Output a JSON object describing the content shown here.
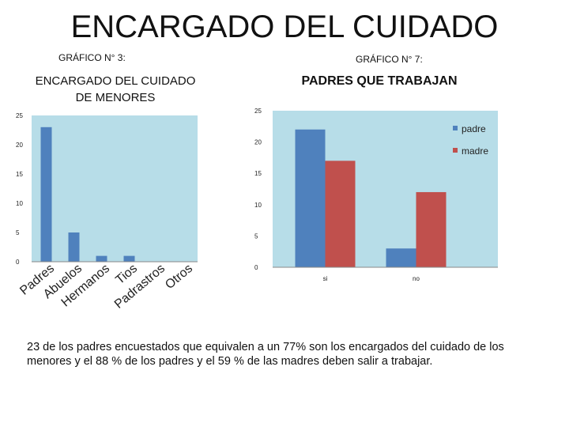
{
  "slide": {
    "title": "ENCARGADO DEL CUIDADO",
    "label_chart3": "GRÁFICO N° 3:",
    "label_chart7": "GRÁFICO N° 7:",
    "caption": "23 de los padres encuestados que equivalen a un 77% son los encargados del cuidado de los menores y el 88 % de los padres y el 59 % de las madres deben salir a trabajar."
  },
  "chart_data": [
    {
      "type": "bar",
      "title": "ENCARGADO DEL CUIDADO DE MENORES",
      "categories": [
        "Padres",
        "Abuelos",
        "Hermanos",
        "Tios",
        "Padrastros",
        "Otros"
      ],
      "values": [
        23,
        5,
        1,
        1,
        0,
        0
      ],
      "ylim": [
        0,
        25
      ],
      "yticks": [
        0,
        5,
        10,
        15,
        20,
        25
      ],
      "xlabel": "",
      "ylabel": "",
      "colors": {
        "bar": "#4F81BD",
        "plot_bg": "#B7DDE8"
      }
    },
    {
      "type": "bar",
      "title": "PADRES QUE TRABAJAN",
      "categories": [
        "si",
        "no"
      ],
      "series": [
        {
          "name": "padre",
          "values": [
            22,
            3
          ]
        },
        {
          "name": "madre",
          "values": [
            17,
            12
          ]
        }
      ],
      "ylim": [
        0,
        25
      ],
      "yticks": [
        0,
        5,
        10,
        15,
        20,
        25
      ],
      "xlabel": "",
      "ylabel": "",
      "colors": {
        "padre": "#4F81BD",
        "madre": "#C0504D",
        "plot_bg": "#B7DDE8"
      }
    }
  ]
}
